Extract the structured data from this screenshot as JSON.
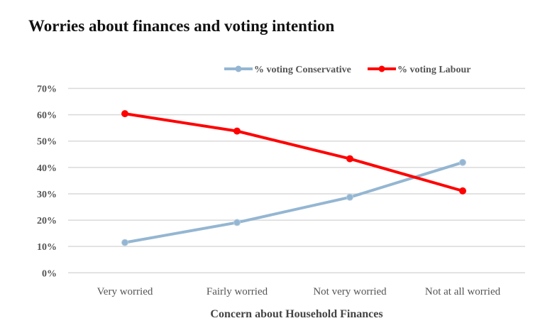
{
  "chart_data": {
    "type": "line",
    "title": "Worries about finances and voting intention",
    "xlabel": "Concern about Household Finances",
    "ylabel": "",
    "categories": [
      "Very worried",
      "Fairly worried",
      "Not very worried",
      "Not at all worried"
    ],
    "yticks": [
      "0%",
      "10%",
      "20%",
      "30%",
      "40%",
      "50%",
      "60%",
      "70%"
    ],
    "ylim": [
      0,
      70
    ],
    "grid": true,
    "legend_position": "top-right",
    "series": [
      {
        "name": "% voting Conservative",
        "color": "#94b6d2",
        "values": [
          11.5,
          19.1,
          28.7,
          41.9
        ]
      },
      {
        "name": "% voting Labour",
        "color": "#ff0000",
        "values": [
          60.4,
          53.8,
          43.3,
          31.1
        ]
      }
    ]
  }
}
